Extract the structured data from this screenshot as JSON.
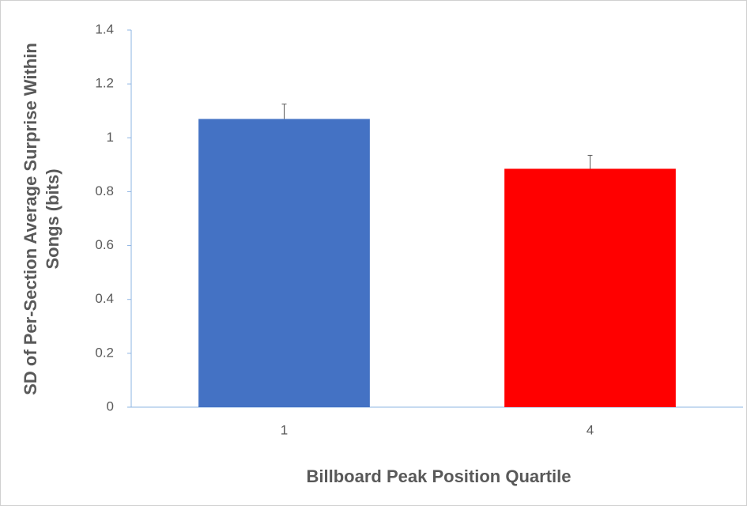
{
  "chart_data": {
    "type": "bar",
    "categories": [
      "1",
      "4"
    ],
    "values": [
      1.07,
      0.885
    ],
    "errors": [
      0.055,
      0.05
    ],
    "colors": [
      "#4472c4",
      "#ff0000"
    ],
    "xlabel": "Billboard Peak Position Quartile",
    "ylabel": [
      "SD of Per-Section Average Surprise Within",
      "Songs (bits)"
    ],
    "ylim": [
      0,
      1.4
    ],
    "yticks": [
      0,
      0.2,
      0.4,
      0.6,
      0.8,
      1,
      1.2,
      1.4
    ],
    "grid": false
  }
}
